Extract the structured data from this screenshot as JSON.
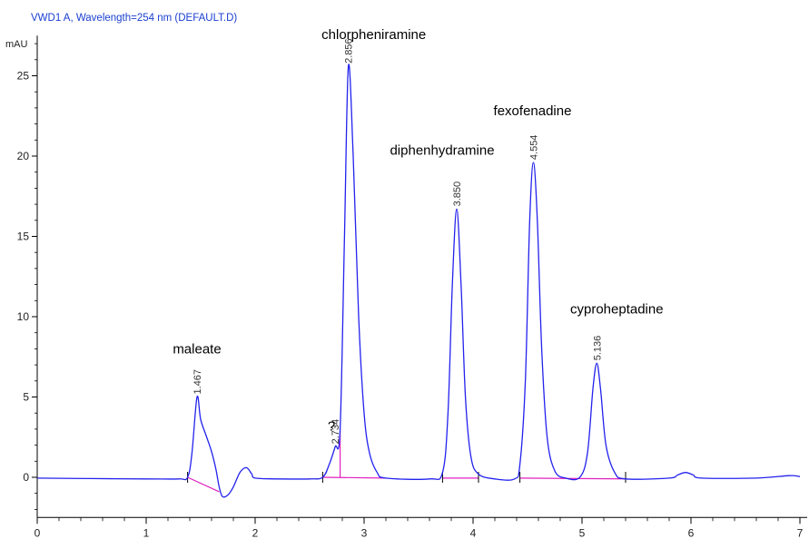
{
  "chart_data": {
    "type": "line",
    "title": "VWD1 A, Wavelength=254 nm (DEFAULT.D)",
    "ylabel": "mAU",
    "xlabel": "",
    "xlim": [
      0,
      7
    ],
    "ylim": [
      -2.5,
      27.5
    ],
    "x_ticks": [
      "0",
      "1",
      "2",
      "3",
      "4",
      "5",
      "6",
      "7"
    ],
    "y_ticks": [
      "0",
      "5",
      "10",
      "15",
      "20",
      "25"
    ],
    "grid": false,
    "colors": {
      "trace": "#2222ee",
      "baseline": "#e020c0",
      "title": "#1a3fd1"
    },
    "peaks": [
      {
        "rt": 1.467,
        "rt_label": "1.467",
        "height": 5.0,
        "name": "maleate"
      },
      {
        "rt": 2.734,
        "rt_label": "2.734",
        "height": 1.9,
        "name": "?"
      },
      {
        "rt": 2.856,
        "rt_label": "2.856",
        "height": 25.6,
        "name": "chlorpheniramine"
      },
      {
        "rt": 3.85,
        "rt_label": "3.850",
        "height": 16.7,
        "name": "diphenhydramine"
      },
      {
        "rt": 4.554,
        "rt_label": "4.554",
        "height": 19.6,
        "name": "fexofenadine"
      },
      {
        "rt": 5.136,
        "rt_label": "5.136",
        "height": 7.1,
        "name": "cyproheptadine"
      }
    ],
    "trace": [
      [
        0.0,
        -0.05
      ],
      [
        0.5,
        -0.08
      ],
      [
        1.0,
        -0.1
      ],
      [
        1.3,
        -0.1
      ],
      [
        1.38,
        0.0
      ],
      [
        1.42,
        1.5
      ],
      [
        1.467,
        5.0
      ],
      [
        1.5,
        3.6
      ],
      [
        1.55,
        2.6
      ],
      [
        1.6,
        1.6
      ],
      [
        1.64,
        0.5
      ],
      [
        1.67,
        -0.6
      ],
      [
        1.7,
        -1.2
      ],
      [
        1.75,
        -1.1
      ],
      [
        1.8,
        -0.6
      ],
      [
        1.86,
        0.3
      ],
      [
        1.92,
        0.6
      ],
      [
        1.97,
        0.2
      ],
      [
        2.0,
        -0.05
      ],
      [
        2.2,
        -0.1
      ],
      [
        2.5,
        -0.1
      ],
      [
        2.62,
        0.0
      ],
      [
        2.68,
        0.8
      ],
      [
        2.734,
        1.9
      ],
      [
        2.78,
        3.0
      ],
      [
        2.82,
        15.0
      ],
      [
        2.856,
        25.6
      ],
      [
        2.9,
        20.0
      ],
      [
        2.95,
        10.0
      ],
      [
        3.0,
        4.0
      ],
      [
        3.05,
        1.5
      ],
      [
        3.12,
        0.3
      ],
      [
        3.2,
        -0.05
      ],
      [
        3.6,
        -0.1
      ],
      [
        3.72,
        0.3
      ],
      [
        3.77,
        4.0
      ],
      [
        3.81,
        12.0
      ],
      [
        3.85,
        16.7
      ],
      [
        3.89,
        12.0
      ],
      [
        3.93,
        5.0
      ],
      [
        3.98,
        1.3
      ],
      [
        4.05,
        0.2
      ],
      [
        4.2,
        -0.1
      ],
      [
        4.38,
        -0.1
      ],
      [
        4.43,
        0.8
      ],
      [
        4.48,
        6.0
      ],
      [
        4.52,
        16.0
      ],
      [
        4.554,
        19.6
      ],
      [
        4.59,
        16.0
      ],
      [
        4.63,
        8.0
      ],
      [
        4.68,
        2.5
      ],
      [
        4.75,
        0.4
      ],
      [
        4.85,
        -0.05
      ],
      [
        4.98,
        0.0
      ],
      [
        5.05,
        1.5
      ],
      [
        5.1,
        5.5
      ],
      [
        5.136,
        7.1
      ],
      [
        5.17,
        5.5
      ],
      [
        5.22,
        2.0
      ],
      [
        5.3,
        0.3
      ],
      [
        5.4,
        -0.1
      ],
      [
        5.8,
        -0.05
      ],
      [
        5.88,
        0.15
      ],
      [
        5.95,
        0.3
      ],
      [
        6.02,
        0.15
      ],
      [
        6.1,
        -0.05
      ],
      [
        6.6,
        -0.05
      ],
      [
        6.9,
        0.1
      ],
      [
        7.0,
        0.05
      ]
    ],
    "baselines": [
      [
        [
          1.38,
          0.0
        ],
        [
          1.67,
          -0.9
        ]
      ],
      [
        [
          2.62,
          0.0
        ],
        [
          3.2,
          -0.05
        ]
      ],
      [
        [
          3.72,
          -0.05
        ],
        [
          4.05,
          -0.05
        ]
      ],
      [
        [
          4.43,
          -0.05
        ],
        [
          5.4,
          -0.1
        ]
      ]
    ],
    "drops": [
      2.78
    ],
    "markers": [
      1.38,
      2.62,
      3.72,
      4.05,
      4.43,
      5.4
    ]
  }
}
